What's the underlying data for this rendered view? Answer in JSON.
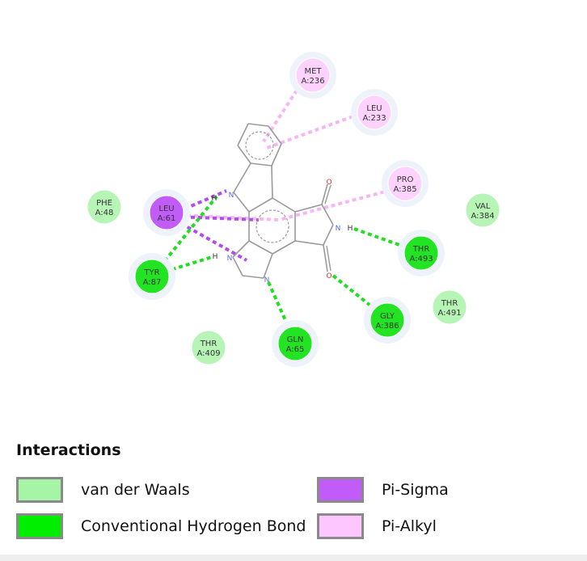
{
  "legend": {
    "title": "Interactions",
    "items": [
      {
        "label": "van der Waals",
        "color": "#a6f4a6"
      },
      {
        "label": "Conventional Hydrogen Bond",
        "color": "#00ee00"
      },
      {
        "label": "Pi-Sigma",
        "color": "#c25cf8"
      },
      {
        "label": "Pi-Alkyl",
        "color": "#fec6fe"
      }
    ]
  },
  "residues": [
    {
      "name": "MET",
      "id": "A:236",
      "type": "Pi-Alkyl"
    },
    {
      "name": "LEU",
      "id": "A:233",
      "type": "Pi-Alkyl"
    },
    {
      "name": "PRO",
      "id": "A:385",
      "type": "Pi-Alkyl"
    },
    {
      "name": "PHE",
      "id": "A:48",
      "type": "van der Waals"
    },
    {
      "name": "LEU",
      "id": "A:61",
      "type": "Pi-Sigma"
    },
    {
      "name": "VAL",
      "id": "A:384",
      "type": "van der Waals"
    },
    {
      "name": "THR",
      "id": "A:493",
      "type": "Conventional Hydrogen Bond"
    },
    {
      "name": "TYR",
      "id": "A:87",
      "type": "Conventional Hydrogen Bond"
    },
    {
      "name": "THR",
      "id": "A:491",
      "type": "van der Waals"
    },
    {
      "name": "GLY",
      "id": "A:386",
      "type": "Conventional Hydrogen Bond"
    },
    {
      "name": "THR",
      "id": "A:409",
      "type": "van der Waals"
    },
    {
      "name": "GLN",
      "id": "A:65",
      "type": "Conventional Hydrogen Bond"
    }
  ],
  "atoms": {
    "O_top": "O",
    "O_bottom": "O",
    "N_imide": "N",
    "H_imide": "H",
    "N_indole": "N",
    "H_indole": "H",
    "N_imid": "N",
    "H_imid": "H",
    "N_imid2": "N"
  },
  "colors": {
    "bond": "#9a9a9a",
    "nitrogen": "#5b6cd8",
    "oxygen": "#e03030",
    "hbond_line": "#22dd22",
    "pi_sigma_line": "#b04cf0",
    "pi_alkyl_line": "#f6b6f6"
  }
}
